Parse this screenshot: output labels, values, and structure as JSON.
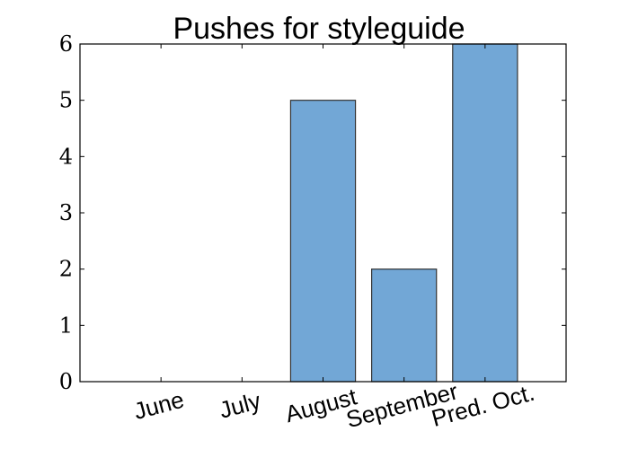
{
  "chart_data": {
    "type": "bar",
    "title": "Pushes for styleguide",
    "categories": [
      "June",
      "July",
      "August",
      "September",
      "Pred. Oct."
    ],
    "values": [
      0,
      0,
      5,
      2,
      6
    ],
    "xlabel": "",
    "ylabel": "",
    "ylim": [
      0,
      6
    ],
    "yticks": [
      "0",
      "1",
      "2",
      "3",
      "4",
      "5",
      "6"
    ],
    "grid": false,
    "legend": "none",
    "bar_color": "#72a7d6",
    "bar_edge_color": "#333333"
  }
}
